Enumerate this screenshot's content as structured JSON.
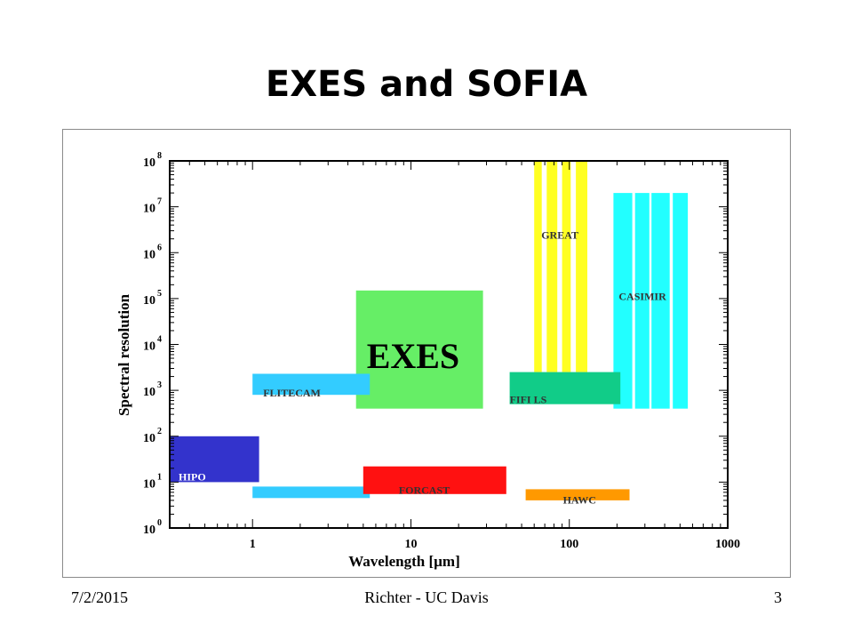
{
  "slide": {
    "title": "EXES and SOFIA",
    "footer_date": "7/2/2015",
    "footer_center": "Richter - UC Davis",
    "footer_page": "3"
  },
  "colors": {
    "EXES": "#66ee66",
    "GREAT": "#ffff22",
    "CASIMIR": "#22ffff",
    "FIFI LS": "#11cc88",
    "FLITECAM": "#33ccff",
    "HIPO": "#3333cc",
    "FORCAST": "#ff1111",
    "HAWC": "#ff9900"
  },
  "chart_data": {
    "type": "area",
    "xlabel": "Wavelength [µm]",
    "ylabel": "Spectral resolution",
    "x_scale": "log",
    "y_scale": "log",
    "xlim": [
      0.3,
      1000
    ],
    "ylim": [
      1,
      100000000
    ],
    "x_ticks": [
      {
        "value": 1,
        "label": "1"
      },
      {
        "value": 10,
        "label": "10"
      },
      {
        "value": 100,
        "label": "100"
      },
      {
        "value": 1000,
        "label": "1000"
      }
    ],
    "y_ticks": [
      {
        "value": 1,
        "base": "10",
        "exp": "0"
      },
      {
        "value": 10,
        "base": "10",
        "exp": "1"
      },
      {
        "value": 100,
        "base": "10",
        "exp": "2"
      },
      {
        "value": 1000,
        "base": "10",
        "exp": "3"
      },
      {
        "value": 10000,
        "base": "10",
        "exp": "4"
      },
      {
        "value": 100000,
        "base": "10",
        "exp": "5"
      },
      {
        "value": 1000000,
        "base": "10",
        "exp": "6"
      },
      {
        "value": 10000000,
        "base": "10",
        "exp": "7"
      },
      {
        "value": 100000000,
        "base": "10",
        "exp": "8"
      }
    ],
    "instruments": [
      {
        "name": "EXES",
        "label": "EXES",
        "regions": [
          {
            "x": [
              4.5,
              28.5
            ],
            "y": [
              400,
              150000
            ]
          }
        ]
      },
      {
        "name": "GREAT",
        "label": "GREAT",
        "regions": [
          {
            "x": [
              60,
              67
            ],
            "y": [
              2500,
              100000000
            ]
          },
          {
            "x": [
              72,
              84
            ],
            "y": [
              2500,
              100000000
            ]
          },
          {
            "x": [
              90,
              102
            ],
            "y": [
              2500,
              100000000
            ]
          },
          {
            "x": [
              110,
              130
            ],
            "y": [
              2500,
              100000000
            ]
          }
        ]
      },
      {
        "name": "CASIMIR",
        "label": "CASIMIR",
        "regions": [
          {
            "x": [
              190,
              250
            ],
            "y": [
              400,
              20000000
            ]
          },
          {
            "x": [
              260,
              320
            ],
            "y": [
              400,
              20000000
            ]
          },
          {
            "x": [
              330,
              430
            ],
            "y": [
              400,
              20000000
            ]
          },
          {
            "x": [
              450,
              560
            ],
            "y": [
              400,
              20000000
            ]
          }
        ]
      },
      {
        "name": "FIFI LS",
        "label": "FIFI LS",
        "regions": [
          {
            "x": [
              42,
              210
            ],
            "y": [
              500,
              2500
            ]
          }
        ]
      },
      {
        "name": "FLITECAM",
        "label": "FLITECAM",
        "regions": [
          {
            "x": [
              1,
              5.5
            ],
            "y": [
              800,
              2300
            ]
          }
        ]
      },
      {
        "name": "HIPO",
        "label": "HIPO",
        "regions": [
          {
            "x": [
              0.3,
              1.1
            ],
            "y": [
              10,
              100
            ]
          }
        ]
      },
      {
        "name": "FLITECAM photometry",
        "label": "",
        "regions": [
          {
            "x": [
              1,
              5.5
            ],
            "y": [
              4.5,
              8
            ]
          }
        ]
      },
      {
        "name": "FORCAST",
        "label": "FORCAST",
        "regions": [
          {
            "x": [
              5,
              40
            ],
            "y": [
              5.5,
              22
            ]
          }
        ]
      },
      {
        "name": "HAWC",
        "label": "HAWC",
        "regions": [
          {
            "x": [
              53,
              240
            ],
            "y": [
              4,
              7
            ]
          }
        ]
      }
    ]
  }
}
